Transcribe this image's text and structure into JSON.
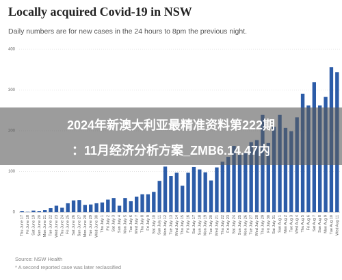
{
  "chart_data": {
    "type": "bar",
    "title": "Locally acquired Covid-19 in NSW",
    "subtitle": "Daily numbers are for new cases in the 24 hours to 8pm the previous night.",
    "categories": [
      "Thu June 17",
      "Fri June 18",
      "Sat June 19",
      "Sun June 20",
      "Mon June 21",
      "Tue June 22",
      "Wed June 23",
      "Thu June 24",
      "Fri June 25",
      "Sat June 26",
      "Sun June 27",
      "Mon June 28",
      "Tue June 29",
      "Wed June 30",
      "Thu July 1",
      "Fri July 2",
      "Sat July 3",
      "Sun July 4",
      "Mon July 5",
      "Tue July 6",
      "Wed July 7",
      "Thu July 8",
      "Fri July 9",
      "Sat July 10",
      "Sun July 11",
      "Mon July 12",
      "Tue July 13",
      "Wed July 14",
      "Thu July 15",
      "Fri July 16",
      "Sat July 17",
      "Sun July 18",
      "Mon July 19",
      "Tue July 20",
      "Wed July 21",
      "Thu July 22",
      "Fri July 23",
      "Sat July 24",
      "Sun July 25",
      "Mon July 26",
      "Tue July 27",
      "Wed July 28",
      "Thu July 29",
      "Fri July 30",
      "Sat July 31",
      "Sun Aug 1",
      "Mon Aug 2",
      "Tue Aug 3",
      "Wed Aug 4",
      "Thu Aug 5",
      "Fri Aug 6",
      "Sat Aug 7",
      "Sun Aug 8",
      "Mon Aug 9",
      "Tue Aug 10",
      "Wed Aug 11"
    ],
    "values": [
      3,
      1,
      4,
      3,
      5,
      10,
      16,
      11,
      22,
      29,
      30,
      18,
      19,
      22,
      24,
      31,
      35,
      16,
      35,
      27,
      38,
      44,
      44,
      50,
      77,
      112,
      89,
      97,
      65,
      97,
      111,
      105,
      98,
      78,
      110,
      124,
      136,
      163,
      141,
      145,
      172,
      177,
      239,
      170,
      210,
      239,
      207,
      199,
      233,
      291,
      262,
      319,
      262,
      283,
      356,
      344
    ],
    "color": "#2c5ca8",
    "ylim": [
      0,
      400
    ],
    "yticks": [
      0,
      100,
      200,
      300,
      400
    ],
    "grid": true,
    "notes": [
      "Source: NSW Health",
      "* A second reported case was later reclassified"
    ]
  },
  "overlay": {
    "lines": [
      "2024年新澳大利亚最精准资料第222期",
      "：11月经济分析方案_ZMB6.14.47内"
    ]
  }
}
